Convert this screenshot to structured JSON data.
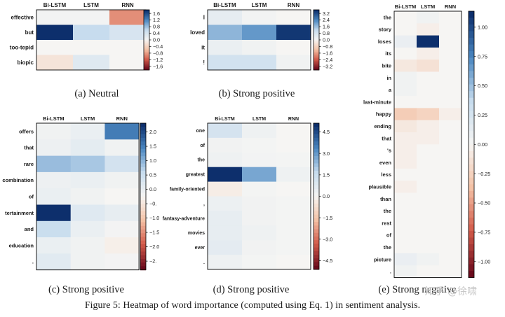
{
  "figure": {
    "caption": "Figure 5: Heatmap of word importance (computed using Eq. 1) in sentiment analysis.",
    "watermark": "知乎 @徐啸"
  },
  "colors": {
    "strong_blue": "#0d2f6c",
    "mid_blue": "#4b87c0",
    "light_blue": "#c7dcee",
    "neutral": "#f6f5f3",
    "light_red": "#f4c2a6",
    "mid_red": "#d25a4a",
    "strong_red": "#6a0a1c",
    "frame": "#000000",
    "text": "#1a1a1a"
  },
  "chart_data": [
    {
      "id": "a",
      "type": "heatmap",
      "caption": "(a) Neutral",
      "columns": [
        "Bi-LSTM",
        "LSTM",
        "RNN"
      ],
      "rows": [
        "effective",
        "but",
        "too-tepid",
        "biopic"
      ],
      "values": [
        [
          0.05,
          0.05,
          -0.9
        ],
        [
          1.8,
          0.6,
          0.4
        ],
        [
          0.0,
          0.0,
          0.0
        ],
        [
          -0.2,
          0.3,
          0.0
        ]
      ],
      "vlim": [
        -1.8,
        1.8
      ],
      "colorbar_ticks": [
        "1.6",
        "1.2",
        "0.8",
        "0.4",
        "0.0",
        "−0.4",
        "−0.8",
        "−1.2",
        "−1.6"
      ]
    },
    {
      "id": "b",
      "type": "heatmap",
      "caption": "(b) Strong positive",
      "columns": [
        "Bi-LSTM",
        "LSTM",
        "RNN"
      ],
      "rows": [
        "I",
        "loved",
        "it",
        "!"
      ],
      "values": [
        [
          0.4,
          0.1,
          0.0
        ],
        [
          1.7,
          2.1,
          3.4
        ],
        [
          0.3,
          0.15,
          0.0
        ],
        [
          0.9,
          0.9,
          0.15
        ]
      ],
      "vlim": [
        -3.5,
        3.5
      ],
      "colorbar_ticks": [
        "3.2",
        "2.4",
        "1.6",
        "0.8",
        "0.0",
        "−0.8",
        "−1.6",
        "−2.4",
        "−3.2"
      ]
    },
    {
      "id": "c",
      "type": "heatmap",
      "caption": "(c) Strong positive",
      "columns": [
        "Bi-LSTM",
        "LSTM",
        "RNN"
      ],
      "rows": [
        "offers",
        "that",
        "rare",
        "combination",
        "of",
        "tertainment",
        "and",
        "education",
        "."
      ],
      "values": [
        [
          0.1,
          0.2,
          1.7
        ],
        [
          0.15,
          0.3,
          0.1
        ],
        [
          1.1,
          1.0,
          0.6
        ],
        [
          0.15,
          0.2,
          0.1
        ],
        [
          0.2,
          0.1,
          0.0
        ],
        [
          2.4,
          0.4,
          0.25
        ],
        [
          0.75,
          0.2,
          0.05
        ],
        [
          0.2,
          0.1,
          -0.1
        ],
        [
          0.35,
          0.1,
          0.05
        ]
      ],
      "vlim": [
        -2.4,
        2.4
      ],
      "colorbar_ticks": [
        "2.0",
        "1.5",
        "1.0",
        "0.5",
        "0.0",
        "−0.",
        "−1.0",
        "−1.5",
        "−2.0",
        "−2."
      ]
    },
    {
      "id": "d",
      "type": "heatmap",
      "caption": "(d) Strong positive",
      "columns": [
        "Bi-LSTM",
        "LSTM",
        "RNN"
      ],
      "rows": [
        "one",
        "of",
        "the",
        "greatest",
        "family-oriented",
        ",",
        "fantasy-adventure",
        "movies",
        "ever",
        "."
      ],
      "values": [
        [
          1.3,
          0.3,
          0.0
        ],
        [
          0.2,
          0.1,
          0.0
        ],
        [
          0.3,
          0.15,
          0.1
        ],
        [
          5.5,
          3.0,
          0.3
        ],
        [
          -0.3,
          0.1,
          0.0
        ],
        [
          0.4,
          0.2,
          0.1
        ],
        [
          0.6,
          0.2,
          0.1
        ],
        [
          0.6,
          0.3,
          0.1
        ],
        [
          0.7,
          0.2,
          0.1
        ],
        [
          0.3,
          0.1,
          0.0
        ]
      ],
      "vlim": [
        -5.5,
        5.5
      ],
      "colorbar_ticks": [
        "4.5",
        "3.0",
        "1.5",
        "0.0",
        "−1.5",
        "−3.0",
        "−4.5"
      ]
    },
    {
      "id": "e",
      "type": "heatmap",
      "caption": "(e) Strong negative",
      "columns": [
        "Bi-LSTM",
        "LSTM",
        "RNN"
      ],
      "rows": [
        "the",
        "story",
        "loses",
        "its",
        "bite",
        "in",
        "a",
        "last-minute",
        "happy",
        "ending",
        "that",
        "'s",
        "even",
        "less",
        "plausible",
        "than",
        "the",
        "rest",
        "of",
        "the",
        "picture",
        "."
      ],
      "values": [
        [
          0.0,
          0.05,
          0.0
        ],
        [
          0.0,
          -0.05,
          0.0
        ],
        [
          0.1,
          1.15,
          0.0
        ],
        [
          0.0,
          -0.05,
          0.0
        ],
        [
          -0.1,
          -0.15,
          0.0
        ],
        [
          0.05,
          0.0,
          0.0
        ],
        [
          0.05,
          0.0,
          0.0
        ],
        [
          0.0,
          0.0,
          0.0
        ],
        [
          -0.3,
          -0.25,
          -0.05
        ],
        [
          -0.1,
          -0.05,
          0.0
        ],
        [
          -0.05,
          -0.05,
          0.0
        ],
        [
          -0.05,
          0.0,
          0.0
        ],
        [
          -0.05,
          0.0,
          0.0
        ],
        [
          0.0,
          0.0,
          0.0
        ],
        [
          -0.05,
          0.0,
          0.0
        ],
        [
          0.0,
          0.0,
          0.0
        ],
        [
          0.0,
          0.0,
          0.0
        ],
        [
          0.0,
          0.0,
          0.0
        ],
        [
          0.0,
          0.0,
          0.0
        ],
        [
          0.0,
          0.0,
          0.0
        ],
        [
          0.1,
          0.05,
          0.0
        ],
        [
          0.05,
          0.0,
          0.0
        ]
      ],
      "vlim": [
        -1.15,
        1.15
      ],
      "colorbar_ticks": [
        "1.00",
        "0.75",
        "0.50",
        "0.25",
        "0.00",
        "−0.25",
        "−0.50",
        "−0.75",
        "−1.00"
      ]
    }
  ]
}
